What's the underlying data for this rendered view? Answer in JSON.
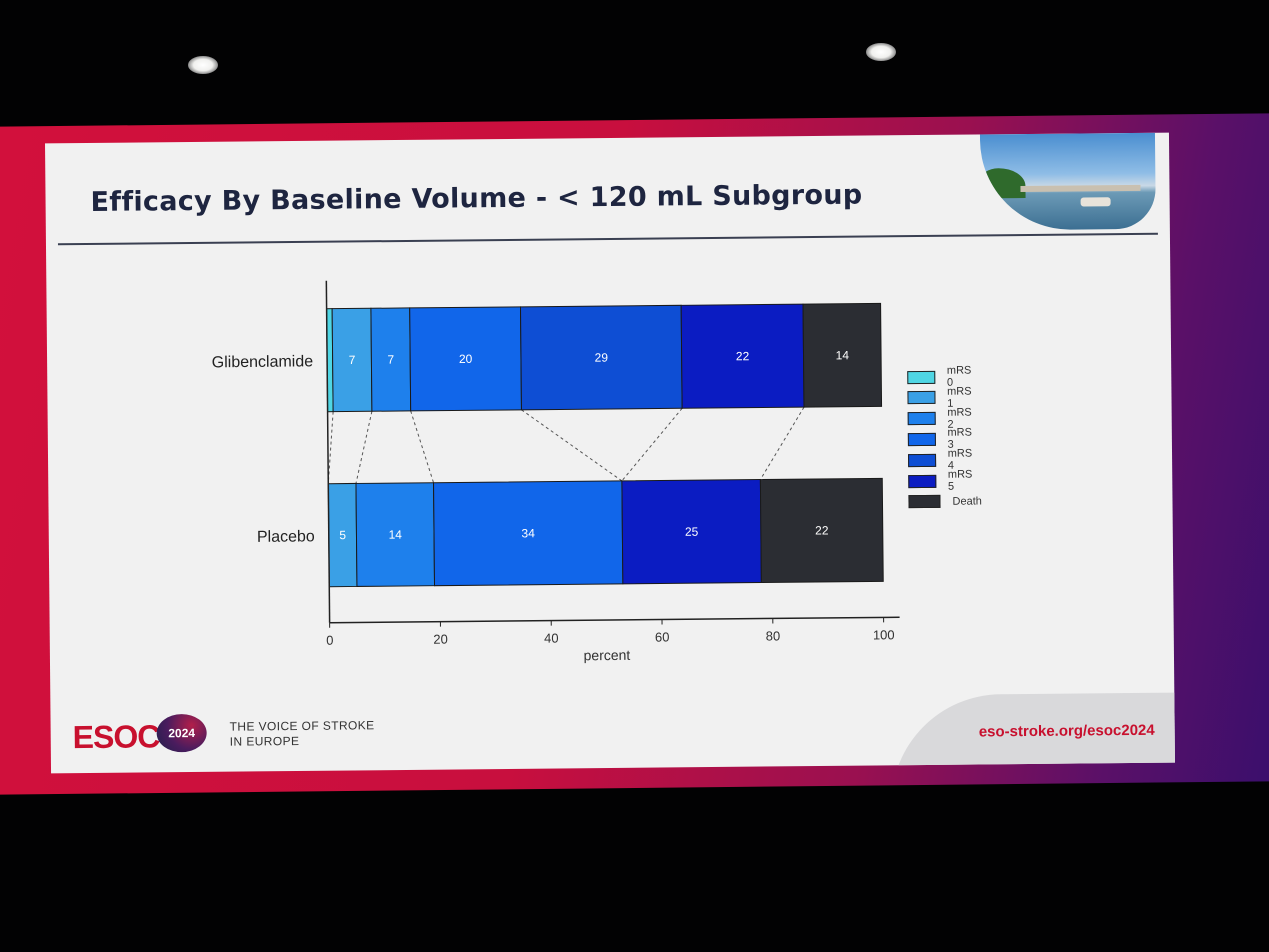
{
  "slide": {
    "title": "Efficacy By Baseline Volume - < 120 mL Subgroup",
    "footer": {
      "logo_text": "ESOC",
      "logo_year": "2024",
      "tagline_line1": "THE VOICE OF STROKE",
      "tagline_line2": "IN EUROPE",
      "url": "eso-stroke.org/esoc2024"
    }
  },
  "chart_data": {
    "type": "bar",
    "orientation": "horizontal",
    "stacked": true,
    "title": "",
    "xlabel": "percent",
    "ylabel": "",
    "xlim": [
      0,
      100
    ],
    "xticks": [
      0,
      20,
      40,
      60,
      80,
      100
    ],
    "categories": [
      "Glibenclamide",
      "Placebo"
    ],
    "legend_position": "right",
    "series": [
      {
        "name": "mRS 0",
        "color": "#4fd6e4",
        "values": [
          1,
          0
        ],
        "labels": [
          "",
          ""
        ]
      },
      {
        "name": "mRS 1",
        "color": "#3aa0e6",
        "values": [
          7,
          5
        ],
        "labels": [
          "7",
          "5"
        ]
      },
      {
        "name": "mRS 2",
        "color": "#1e80ec",
        "values": [
          7,
          14
        ],
        "labels": [
          "7",
          "14"
        ]
      },
      {
        "name": "mRS 3",
        "color": "#1166ea",
        "values": [
          20,
          34
        ],
        "labels": [
          "20",
          "34"
        ]
      },
      {
        "name": "mRS 4",
        "color": "#0e4ed4",
        "values": [
          29,
          0
        ],
        "labels": [
          "29",
          ""
        ]
      },
      {
        "name": "mRS 5",
        "color": "#0b1cc2",
        "values": [
          22,
          25
        ],
        "labels": [
          "22",
          "25"
        ]
      },
      {
        "name": "Death",
        "color": "#2b2d33",
        "values": [
          14,
          22
        ],
        "labels": [
          "14",
          "22"
        ]
      }
    ]
  }
}
